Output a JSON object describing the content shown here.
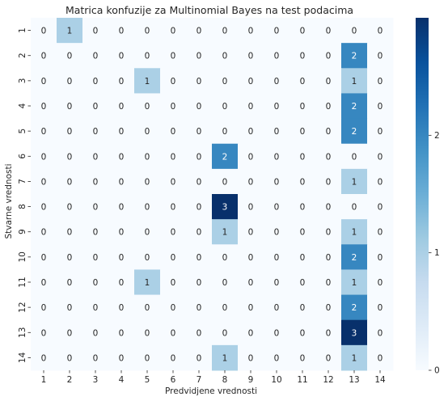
{
  "chart_data": {
    "type": "heatmap",
    "title": "Matrica konfuzije za Multinomial Bayes na test podacima",
    "xlabel": "Predvidjene vrednosti",
    "ylabel": "Stvarne vrednosti",
    "x_categories": [
      "1",
      "2",
      "3",
      "4",
      "5",
      "6",
      "7",
      "8",
      "9",
      "10",
      "11",
      "12",
      "13",
      "14"
    ],
    "y_categories": [
      "1",
      "2",
      "3",
      "4",
      "5",
      "6",
      "7",
      "8",
      "9",
      "10",
      "11",
      "12",
      "13",
      "14"
    ],
    "values": [
      [
        0,
        1,
        0,
        0,
        0,
        0,
        0,
        0,
        0,
        0,
        0,
        0,
        0,
        0
      ],
      [
        0,
        0,
        0,
        0,
        0,
        0,
        0,
        0,
        0,
        0,
        0,
        0,
        2,
        0
      ],
      [
        0,
        0,
        0,
        0,
        1,
        0,
        0,
        0,
        0,
        0,
        0,
        0,
        1,
        0
      ],
      [
        0,
        0,
        0,
        0,
        0,
        0,
        0,
        0,
        0,
        0,
        0,
        0,
        2,
        0
      ],
      [
        0,
        0,
        0,
        0,
        0,
        0,
        0,
        0,
        0,
        0,
        0,
        0,
        2,
        0
      ],
      [
        0,
        0,
        0,
        0,
        0,
        0,
        0,
        2,
        0,
        0,
        0,
        0,
        0,
        0
      ],
      [
        0,
        0,
        0,
        0,
        0,
        0,
        0,
        0,
        0,
        0,
        0,
        0,
        1,
        0
      ],
      [
        0,
        0,
        0,
        0,
        0,
        0,
        0,
        3,
        0,
        0,
        0,
        0,
        0,
        0
      ],
      [
        0,
        0,
        0,
        0,
        0,
        0,
        0,
        1,
        0,
        0,
        0,
        0,
        1,
        0
      ],
      [
        0,
        0,
        0,
        0,
        0,
        0,
        0,
        0,
        0,
        0,
        0,
        0,
        2,
        0
      ],
      [
        0,
        0,
        0,
        0,
        1,
        0,
        0,
        0,
        0,
        0,
        0,
        0,
        1,
        0
      ],
      [
        0,
        0,
        0,
        0,
        0,
        0,
        0,
        0,
        0,
        0,
        0,
        0,
        2,
        0
      ],
      [
        0,
        0,
        0,
        0,
        0,
        0,
        0,
        0,
        0,
        0,
        0,
        0,
        3,
        0
      ],
      [
        0,
        0,
        0,
        0,
        0,
        0,
        0,
        1,
        0,
        0,
        0,
        0,
        1,
        0
      ]
    ],
    "colorbar": {
      "min": 0,
      "max": 3,
      "ticks": [
        "0",
        "1",
        "2"
      ]
    },
    "colormap": [
      "#f7fbff",
      "#deebf7",
      "#c6dbef",
      "#9ecae1",
      "#6baed6",
      "#4292c6",
      "#2171b5",
      "#08519c",
      "#08306b"
    ],
    "annotation_colors": {
      "dark_text": "#262626",
      "light_text": "#ffffff"
    }
  }
}
